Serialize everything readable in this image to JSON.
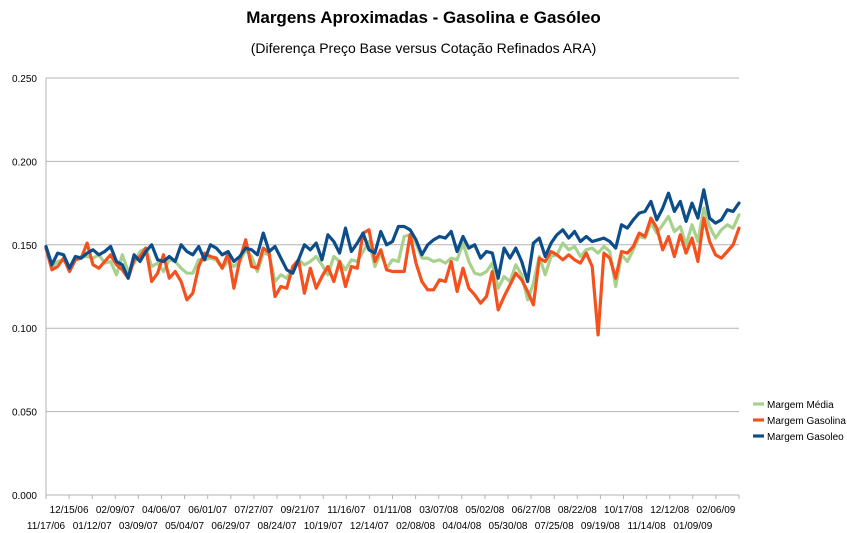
{
  "chart_data": {
    "type": "line",
    "title": "Margens Aproximadas - Gasolina e Gasóleo",
    "subtitle": "(Diferença Preço Base versus Cotação Refinados ARA)",
    "xlabel": "",
    "ylabel": "",
    "ylim": [
      0,
      0.25
    ],
    "yticks": [
      "0.000",
      "0.050",
      "0.100",
      "0.150",
      "0.200",
      "0.250"
    ],
    "grid": true,
    "legend_position": "right",
    "x_tick_labels_upper": [
      "12/15/06",
      "02/09/07",
      "04/06/07",
      "06/01/07",
      "07/27/07",
      "09/21/07",
      "11/16/07",
      "01/11/08",
      "03/07/08",
      "05/02/08",
      "06/27/08",
      "08/22/08",
      "10/17/08",
      "12/12/08",
      "02/06/09"
    ],
    "x_tick_labels_lower": [
      "11/17/06",
      "01/12/07",
      "03/09/07",
      "05/04/07",
      "06/29/07",
      "08/24/07",
      "10/19/07",
      "12/14/07",
      "02/08/08",
      "04/04/08",
      "05/30/08",
      "07/25/08",
      "09/19/08",
      "11/14/08",
      "01/09/09"
    ],
    "series": [
      {
        "name": "Margem Média",
        "color": "#a9d18e",
        "values": [
          0.148,
          0.137,
          0.14,
          0.141,
          0.136,
          0.141,
          0.143,
          0.143,
          0.142,
          0.144,
          0.139,
          0.14,
          0.132,
          0.144,
          0.134,
          0.139,
          0.146,
          0.148,
          0.137,
          0.139,
          0.134,
          0.141,
          0.14,
          0.136,
          0.133,
          0.133,
          0.141,
          0.141,
          0.142,
          0.141,
          0.136,
          0.14,
          0.137,
          0.14,
          0.147,
          0.143,
          0.134,
          0.145,
          0.144,
          0.128,
          0.132,
          0.13,
          0.136,
          0.141,
          0.138,
          0.14,
          0.143,
          0.138,
          0.132,
          0.143,
          0.14,
          0.135,
          0.141,
          0.14,
          0.146,
          0.152,
          0.137,
          0.145,
          0.136,
          0.141,
          0.14,
          0.155,
          0.156,
          0.151,
          0.142,
          0.142,
          0.14,
          0.141,
          0.139,
          0.142,
          0.141,
          0.151,
          0.14,
          0.133,
          0.132,
          0.134,
          0.139,
          0.124,
          0.131,
          0.128,
          0.138,
          0.132,
          0.117,
          0.127,
          0.143,
          0.132,
          0.143,
          0.144,
          0.151,
          0.147,
          0.149,
          0.143,
          0.147,
          0.148,
          0.145,
          0.149,
          0.146,
          0.125,
          0.144,
          0.14,
          0.147,
          0.155,
          0.154,
          0.163,
          0.157,
          0.162,
          0.167,
          0.158,
          0.161,
          0.15,
          0.162,
          0.152,
          0.172,
          0.161,
          0.154,
          0.159,
          0.162,
          0.16,
          0.168
        ]
      },
      {
        "name": "Margem Gasolina",
        "color": "#f4511e",
        "values": [
          0.148,
          0.135,
          0.137,
          0.142,
          0.134,
          0.141,
          0.142,
          0.151,
          0.138,
          0.136,
          0.14,
          0.144,
          0.138,
          0.135,
          0.13,
          0.141,
          0.143,
          0.148,
          0.128,
          0.133,
          0.144,
          0.13,
          0.134,
          0.128,
          0.117,
          0.121,
          0.137,
          0.145,
          0.143,
          0.142,
          0.136,
          0.145,
          0.124,
          0.141,
          0.153,
          0.137,
          0.136,
          0.148,
          0.145,
          0.119,
          0.125,
          0.124,
          0.137,
          0.141,
          0.121,
          0.136,
          0.124,
          0.131,
          0.137,
          0.128,
          0.14,
          0.125,
          0.137,
          0.136,
          0.157,
          0.159,
          0.14,
          0.147,
          0.135,
          0.134,
          0.134,
          0.134,
          0.156,
          0.139,
          0.128,
          0.123,
          0.123,
          0.129,
          0.128,
          0.14,
          0.122,
          0.136,
          0.124,
          0.12,
          0.115,
          0.119,
          0.134,
          0.111,
          0.119,
          0.126,
          0.133,
          0.129,
          0.122,
          0.114,
          0.142,
          0.14,
          0.146,
          0.144,
          0.141,
          0.144,
          0.141,
          0.139,
          0.145,
          0.137,
          0.096,
          0.145,
          0.142,
          0.13,
          0.146,
          0.145,
          0.149,
          0.157,
          0.155,
          0.166,
          0.16,
          0.147,
          0.155,
          0.143,
          0.156,
          0.145,
          0.154,
          0.14,
          0.166,
          0.152,
          0.144,
          0.142,
          0.146,
          0.15,
          0.16
        ]
      },
      {
        "name": "Margem Gasoleo",
        "color": "#0d4d8a",
        "values": [
          0.149,
          0.138,
          0.145,
          0.144,
          0.136,
          0.143,
          0.142,
          0.145,
          0.147,
          0.144,
          0.146,
          0.149,
          0.14,
          0.138,
          0.13,
          0.144,
          0.14,
          0.146,
          0.15,
          0.141,
          0.14,
          0.143,
          0.14,
          0.15,
          0.146,
          0.144,
          0.149,
          0.141,
          0.15,
          0.148,
          0.144,
          0.146,
          0.14,
          0.143,
          0.148,
          0.147,
          0.144,
          0.157,
          0.146,
          0.149,
          0.142,
          0.135,
          0.133,
          0.141,
          0.15,
          0.147,
          0.151,
          0.141,
          0.156,
          0.152,
          0.145,
          0.16,
          0.146,
          0.151,
          0.157,
          0.147,
          0.145,
          0.158,
          0.15,
          0.152,
          0.161,
          0.161,
          0.159,
          0.153,
          0.144,
          0.15,
          0.153,
          0.155,
          0.154,
          0.158,
          0.146,
          0.155,
          0.148,
          0.15,
          0.142,
          0.146,
          0.145,
          0.13,
          0.148,
          0.142,
          0.148,
          0.14,
          0.128,
          0.151,
          0.154,
          0.143,
          0.151,
          0.156,
          0.159,
          0.154,
          0.158,
          0.152,
          0.155,
          0.152,
          0.153,
          0.154,
          0.152,
          0.148,
          0.162,
          0.16,
          0.165,
          0.169,
          0.17,
          0.176,
          0.165,
          0.172,
          0.181,
          0.17,
          0.176,
          0.164,
          0.175,
          0.166,
          0.183,
          0.166,
          0.163,
          0.165,
          0.171,
          0.17,
          0.175
        ]
      }
    ]
  }
}
